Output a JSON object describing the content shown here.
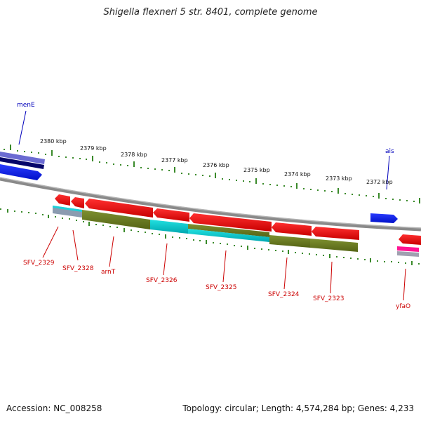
{
  "title": "Shigella flexneri 5 str. 8401, complete genome",
  "footer": {
    "accession": "Accession: NC_008258",
    "summary": "Topology: circular; Length: 4,574,284 bp; Genes: 4,233"
  },
  "colors": {
    "backbone": "#808080",
    "tick": "#3a8a2a",
    "gene_forward_label": "#0000bb",
    "gene_reverse_label": "#cc0000",
    "cds_reverse": "#ff0000",
    "cds_forward": "#0000ff",
    "cog_olive": "#6b7d1e",
    "cog_cyan": "#00cccc",
    "cog_gray": "#8899aa",
    "cog_pink": "#ff1493",
    "cog_purple": "#6666cc",
    "cog_navy": "#000066"
  },
  "scale_labels": [
    "2380 kbp",
    "2379 kbp",
    "2378 kbp",
    "2377 kbp",
    "2376 kbp",
    "2375 kbp",
    "2374 kbp",
    "2373 kbp",
    "2372 kbp"
  ],
  "gene_labels": {
    "forward": [
      "menE",
      "ais"
    ],
    "reverse": [
      "SFV_2329",
      "SFV_2328",
      "arnT",
      "SFV_2326",
      "SFV_2325",
      "SFV_2324",
      "SFV_2323",
      "yfaO"
    ]
  }
}
